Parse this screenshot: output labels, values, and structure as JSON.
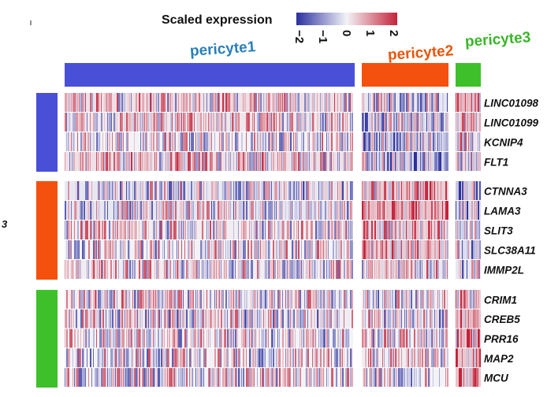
{
  "chart_data": {
    "type": "heatmap",
    "title": "Scaled expression",
    "legend": {
      "title": "Scaled expression",
      "ticks": [
        "−2",
        "−1",
        "0",
        "1",
        "2"
      ],
      "values": [
        -2,
        -1,
        0,
        1,
        2
      ],
      "colors": {
        "low": "#2b2f9e",
        "mid": "#f3f3f7",
        "high": "#c4233a"
      }
    },
    "columns": [
      {
        "name": "pericyte1",
        "color": "#4a4fd8",
        "label_color": "#2a7fb8"
      },
      {
        "name": "pericyte2",
        "color": "#f4510f",
        "label_color": "#e8560c"
      },
      {
        "name": "pericyte3",
        "color": "#3ec02a",
        "label_color": "#3ab52a"
      }
    ],
    "row_groups": [
      {
        "color": "#4a4fd8",
        "genes": [
          "LINC01098",
          "LINC01099",
          "KCNIP4",
          "FLT1"
        ]
      },
      {
        "color": "#f4510f",
        "genes": [
          "CTNNA3",
          "LAMA3",
          "SLIT3",
          "SLC38A11",
          "IMMP2L"
        ]
      },
      {
        "color": "#3ec02a",
        "genes": [
          "CRIM1",
          "CREB5",
          "PRR16",
          "MAP2",
          "MCU"
        ]
      }
    ],
    "row_group_side_label": "3",
    "mean_scaled_expression": [
      [
        0.3,
        -0.2,
        0.7
      ],
      [
        0.2,
        -0.3,
        0.4
      ],
      [
        0.0,
        -0.4,
        0.2
      ],
      [
        0.3,
        -0.5,
        -0.4
      ],
      [
        -0.2,
        0.6,
        -0.5
      ],
      [
        -0.2,
        0.8,
        -0.4
      ],
      [
        0.1,
        0.5,
        -0.1
      ],
      [
        0.0,
        0.6,
        -0.3
      ],
      [
        0.1,
        0.2,
        -0.2
      ],
      [
        0.1,
        -0.1,
        0.6
      ],
      [
        -0.1,
        -0.1,
        0.8
      ],
      [
        0.0,
        0.0,
        0.6
      ],
      [
        0.0,
        0.1,
        0.7
      ],
      [
        0.0,
        0.0,
        0.7
      ]
    ]
  }
}
